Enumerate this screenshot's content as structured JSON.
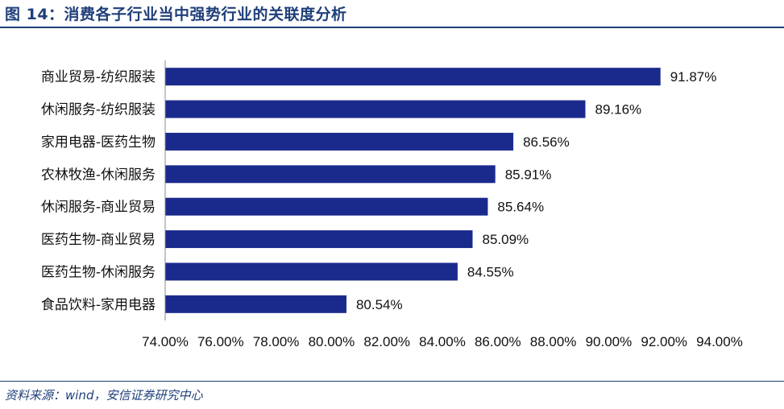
{
  "figure": {
    "title": "图 14：消费各子行业当中强势行业的关联度分析",
    "source": "资料来源：wind，安信证券研究中心"
  },
  "chart_data": {
    "type": "bar",
    "orientation": "horizontal",
    "categories": [
      "商业贸易-纺织服装",
      "休闲服务-纺织服装",
      "家用电器-医药生物",
      "农林牧渔-休闲服务",
      "休闲服务-商业贸易",
      "医药生物-商业贸易",
      "医药生物-休闲服务",
      "食品饮料-家用电器"
    ],
    "values": [
      91.87,
      89.16,
      86.56,
      85.91,
      85.64,
      85.09,
      84.55,
      80.54
    ],
    "value_labels": [
      "91.87%",
      "89.16%",
      "86.56%",
      "85.91%",
      "85.64%",
      "85.09%",
      "84.55%",
      "80.54%"
    ],
    "xlim": [
      74,
      94
    ],
    "xticks": [
      74,
      76,
      78,
      80,
      82,
      84,
      86,
      88,
      90,
      92,
      94
    ],
    "xtick_labels": [
      "74.00%",
      "76.00%",
      "78.00%",
      "80.00%",
      "82.00%",
      "84.00%",
      "86.00%",
      "88.00%",
      "90.00%",
      "92.00%",
      "94.00%"
    ],
    "xlabel": "",
    "ylabel": "",
    "grid": false,
    "legend": "none",
    "bar_color": "#1a2a8c",
    "axis_color": "#888888"
  }
}
